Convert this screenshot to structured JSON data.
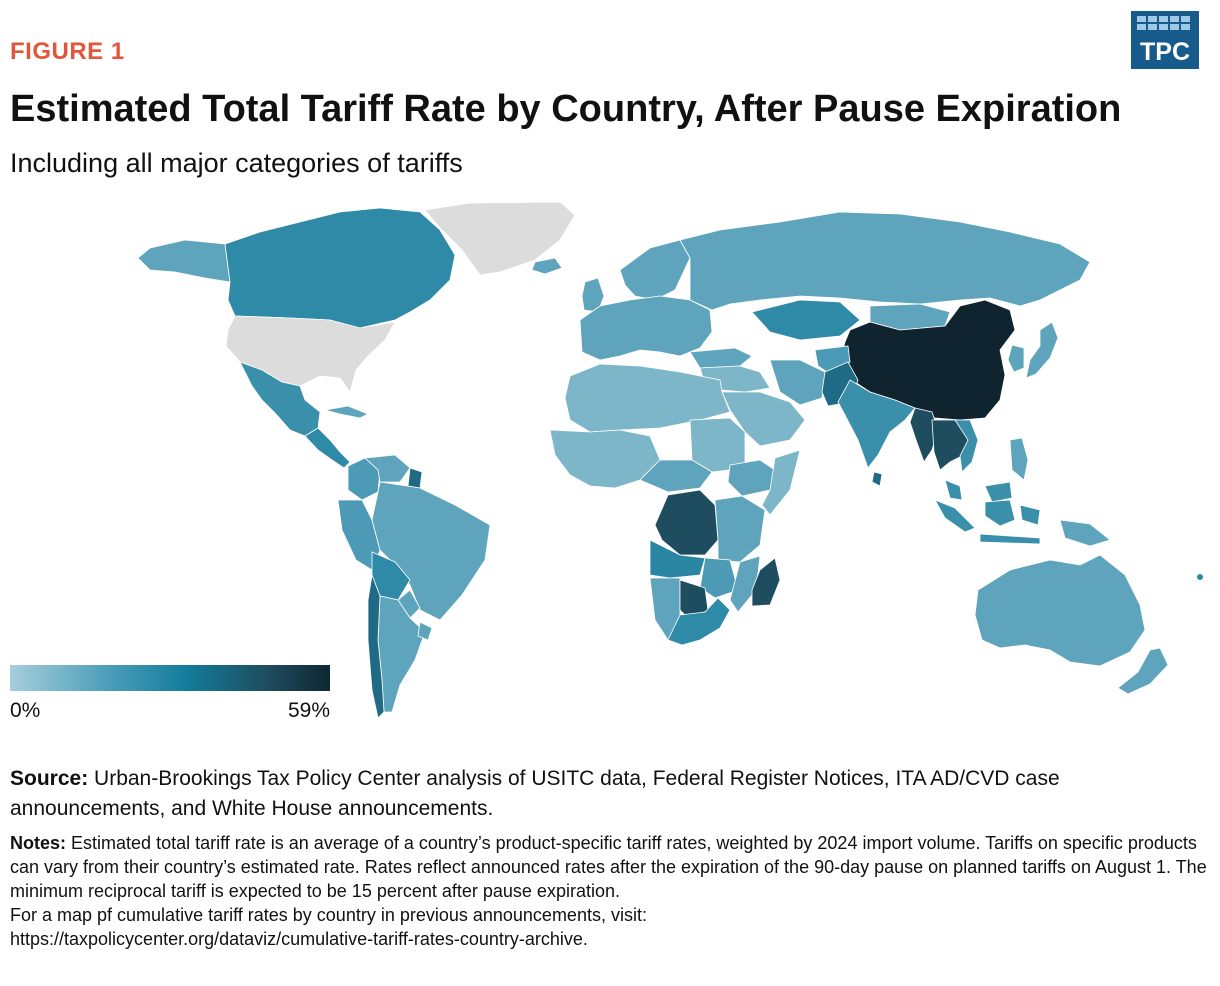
{
  "figure_label": "FIGURE 1",
  "logo": {
    "text": "TPC",
    "color": "#175a8c"
  },
  "title": "Estimated Total Tariff Rate by Country, After Pause Expiration",
  "subtitle": "Including all major categories of tariffs",
  "legend": {
    "min_label": "0%",
    "max_label": "59%",
    "colors": [
      "#a6cedb",
      "#4e9fbb",
      "#137c9c",
      "#1e4d5f",
      "#0f2733"
    ]
  },
  "map": {
    "type": "choropleth",
    "no_data_color": "#dcdcdc",
    "regions": [
      {
        "name": "Greenland",
        "shade": "none"
      },
      {
        "name": "United States",
        "shade": "none"
      },
      {
        "name": "Canada",
        "shade": "mid-dark"
      },
      {
        "name": "Alaska",
        "shade": "mid"
      },
      {
        "name": "Mexico",
        "shade": "mid-dark"
      },
      {
        "name": "Central America",
        "shade": "mid-dark"
      },
      {
        "name": "Cuba",
        "shade": "mid"
      },
      {
        "name": "Colombia",
        "shade": "mid"
      },
      {
        "name": "Venezuela",
        "shade": "mid"
      },
      {
        "name": "Guyana",
        "shade": "dark"
      },
      {
        "name": "Peru",
        "shade": "mid"
      },
      {
        "name": "Brazil",
        "shade": "mid"
      },
      {
        "name": "Bolivia",
        "shade": "mid-dark"
      },
      {
        "name": "Paraguay",
        "shade": "mid"
      },
      {
        "name": "Argentina",
        "shade": "mid"
      },
      {
        "name": "Chile",
        "shade": "dark"
      },
      {
        "name": "Uruguay",
        "shade": "mid"
      },
      {
        "name": "Russia",
        "shade": "mid"
      },
      {
        "name": "Europe",
        "shade": "mid"
      },
      {
        "name": "Scandinavia",
        "shade": "mid"
      },
      {
        "name": "Iceland",
        "shade": "mid"
      },
      {
        "name": "United Kingdom",
        "shade": "mid"
      },
      {
        "name": "Turkey",
        "shade": "mid"
      },
      {
        "name": "Kazakhstan",
        "shade": "mid-dark"
      },
      {
        "name": "Mongolia",
        "shade": "mid"
      },
      {
        "name": "China",
        "shade": "darkest"
      },
      {
        "name": "Middle East",
        "shade": "light"
      },
      {
        "name": "Saudi Arabia",
        "shade": "light"
      },
      {
        "name": "Iran",
        "shade": "mid"
      },
      {
        "name": "Pakistan",
        "shade": "mid-dark"
      },
      {
        "name": "Afghanistan",
        "shade": "mid"
      },
      {
        "name": "India",
        "shade": "mid-dark"
      },
      {
        "name": "Sri Lanka",
        "shade": "dark"
      },
      {
        "name": "Myanmar",
        "shade": "dark"
      },
      {
        "name": "Thailand",
        "shade": "dark"
      },
      {
        "name": "Laos",
        "shade": "dark"
      },
      {
        "name": "Vietnam",
        "shade": "mid-dark"
      },
      {
        "name": "Japan",
        "shade": "mid"
      },
      {
        "name": "Korea",
        "shade": "mid"
      },
      {
        "name": "Philippines",
        "shade": "mid"
      },
      {
        "name": "Indonesia",
        "shade": "mid-dark"
      },
      {
        "name": "Malaysia",
        "shade": "mid-dark"
      },
      {
        "name": "Papua New Guinea",
        "shade": "mid"
      },
      {
        "name": "Australia",
        "shade": "mid"
      },
      {
        "name": "New Zealand",
        "shade": "mid"
      },
      {
        "name": "North Africa",
        "shade": "light"
      },
      {
        "name": "West Africa",
        "shade": "light"
      },
      {
        "name": "Sudan",
        "shade": "light"
      },
      {
        "name": "Ethiopia",
        "shade": "mid"
      },
      {
        "name": "Somalia",
        "shade": "light"
      },
      {
        "name": "DR Congo",
        "shade": "dark"
      },
      {
        "name": "Angola",
        "shade": "mid-dark"
      },
      {
        "name": "East Africa",
        "shade": "mid"
      },
      {
        "name": "Namibia",
        "shade": "mid"
      },
      {
        "name": "Botswana",
        "shade": "dark"
      },
      {
        "name": "South Africa",
        "shade": "mid-dark"
      },
      {
        "name": "Mozambique",
        "shade": "mid"
      },
      {
        "name": "Madagascar",
        "shade": "dark"
      }
    ]
  },
  "source": {
    "label": "Source:",
    "text": "Urban-Brookings Tax Policy Center analysis of USITC data, Federal Register Notices, ITA AD/CVD case announcements, and White House announcements."
  },
  "notes": {
    "label": "Notes:",
    "text": "Estimated total tariff rate is an average of a country’s product-specific tariff rates, weighted by 2024 import volume. Tariffs on specific products can vary from their country’s estimated rate. Rates reflect announced rates after the expiration of the 90-day pause on planned tariffs on August 1. The minimum reciprocal tariff is expected to be 15 percent after pause expiration.",
    "link_intro": "For a map pf cumulative tariff rates by country in previous announcements, visit:",
    "url": "https://taxpolicycenter.org/dataviz/cumulative-tariff-rates-country-archive."
  }
}
